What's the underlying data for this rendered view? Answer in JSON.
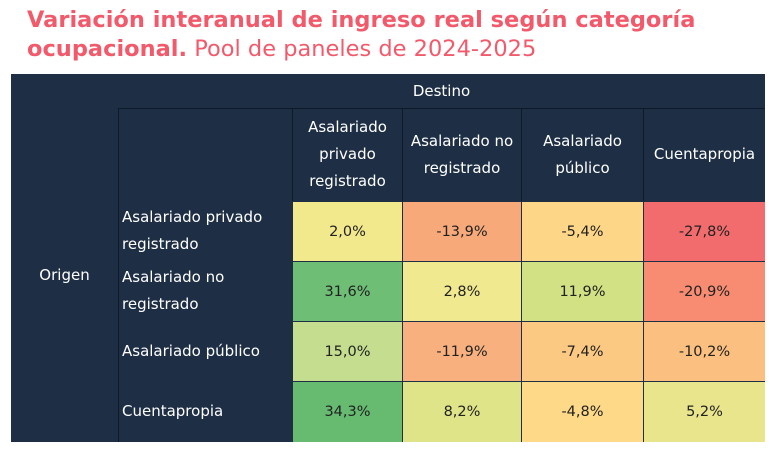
{
  "title": {
    "bold": "Variación interanual de ingreso real según categoría",
    "bold2": "ocupacional.",
    "rest": "Pool de paneles de 2024-2025"
  },
  "chart_data": {
    "type": "heatmap",
    "column_group_label": "Destino",
    "row_group_label": "Origen",
    "columns": [
      [
        "Asalariado",
        "privado",
        "registrado"
      ],
      [
        "Asalariado no",
        "registrado"
      ],
      [
        "Asalariado",
        "público"
      ],
      [
        "Cuentapropia"
      ]
    ],
    "rows": [
      [
        "Asalariado privado",
        "registrado"
      ],
      [
        "Asalariado no",
        "registrado"
      ],
      [
        "Asalariado público"
      ],
      [
        "Cuentapropia"
      ]
    ],
    "values": [
      [
        "2,0%",
        "-13,9%",
        "-5,4%",
        "-27,8%"
      ],
      [
        "31,6%",
        "2,8%",
        "11,9%",
        "-20,9%"
      ],
      [
        "15,0%",
        "-11,9%",
        "-7,4%",
        "-10,2%"
      ],
      [
        "34,3%",
        "8,2%",
        "-4,8%",
        "5,2%"
      ]
    ],
    "colors": [
      [
        "#f2e98d",
        "#f7a97a",
        "#fdd687",
        "#f26c6d"
      ],
      [
        "#6ebe76",
        "#f1e98f",
        "#d2e183",
        "#f88c72"
      ],
      [
        "#c5dd8e",
        "#f8b17e",
        "#fbc982",
        "#fbc07f"
      ],
      [
        "#66bb71",
        "#dfe488",
        "#fed987",
        "#e9e58d"
      ]
    ]
  }
}
